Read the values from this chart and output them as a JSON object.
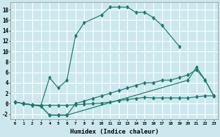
{
  "xlabel": "Humidex (Indice chaleur)",
  "bg_color": "#cce8ee",
  "grid_color": "#ffffff",
  "line_color": "#1a7a6e",
  "xlim": [
    -0.5,
    23.5
  ],
  "ylim": [
    -3.0,
    19.5
  ],
  "xticks": [
    0,
    1,
    2,
    3,
    4,
    5,
    6,
    7,
    8,
    9,
    10,
    11,
    12,
    13,
    14,
    15,
    16,
    17,
    18,
    19,
    20,
    21,
    22,
    23
  ],
  "yticks": [
    -2,
    0,
    2,
    4,
    6,
    8,
    10,
    12,
    14,
    16,
    18
  ],
  "line1_x": [
    0,
    1,
    2,
    3,
    4,
    5,
    6,
    7,
    8,
    10,
    11,
    12,
    13,
    14,
    15,
    16,
    17,
    19
  ],
  "line1_y": [
    0.3,
    0.0,
    -0.3,
    -0.3,
    5.0,
    3.0,
    4.5,
    13.0,
    15.5,
    17.0,
    18.5,
    18.5,
    18.5,
    17.5,
    17.5,
    16.5,
    15.0,
    11.0
  ],
  "line2_x": [
    0,
    1,
    2,
    3,
    4,
    5,
    6,
    7,
    8,
    9,
    10,
    11,
    12,
    13,
    14,
    15,
    16,
    17,
    18,
    19,
    20,
    21,
    22,
    23
  ],
  "line2_y": [
    0.3,
    0.0,
    -0.2,
    -0.3,
    -0.3,
    -0.3,
    -0.3,
    -0.2,
    -0.1,
    0.0,
    0.1,
    0.3,
    0.6,
    0.8,
    1.0,
    1.2,
    1.1,
    1.1,
    1.1,
    1.1,
    1.1,
    1.3,
    1.5,
    1.5
  ],
  "line3_x": [
    0,
    1,
    2,
    3,
    4,
    5,
    6,
    20,
    21,
    22,
    23
  ],
  "line3_y": [
    0.3,
    0.0,
    -0.2,
    -0.5,
    -2.2,
    -2.2,
    -2.2,
    4.5,
    7.0,
    4.5,
    1.5
  ],
  "line4_x": [
    0,
    1,
    2,
    3,
    4,
    5,
    6,
    7,
    8,
    9,
    10,
    11,
    12,
    13,
    14,
    15,
    16,
    17,
    18,
    19,
    20,
    21,
    22,
    23
  ],
  "line4_y": [
    0.3,
    0.0,
    -0.2,
    -0.5,
    -2.2,
    -2.2,
    -2.2,
    0.0,
    0.5,
    1.0,
    1.5,
    2.0,
    2.5,
    3.0,
    3.5,
    4.0,
    4.0,
    4.5,
    4.5,
    5.0,
    5.5,
    6.5,
    4.5,
    1.5
  ]
}
